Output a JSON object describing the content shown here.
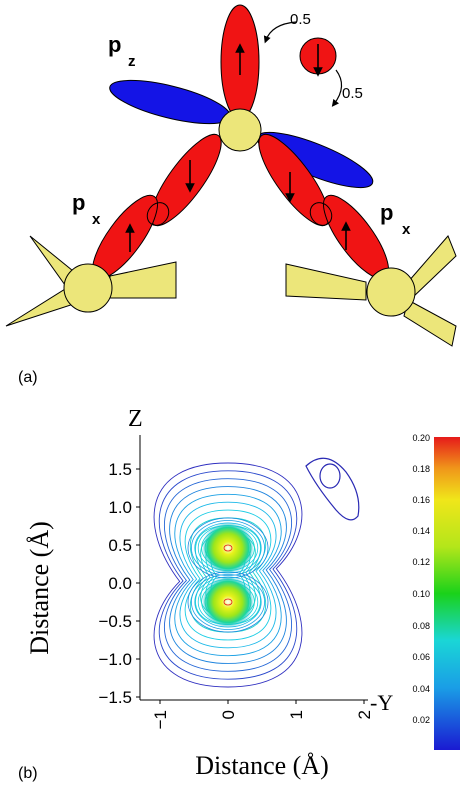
{
  "panel_a": {
    "label": "(a)",
    "orbital_pz": "p",
    "orbital_pz_sub": "z",
    "orbital_px_left": "p",
    "orbital_px_left_sub": "x",
    "orbital_px_right": "p",
    "orbital_px_right_sub": "x",
    "transfer_top": "0.5",
    "transfer_bottom": "0.5",
    "colors": {
      "red_lobe": "#f01414",
      "blue_lobe": "#1414e6",
      "atom": "#ece67a",
      "dark": "#000000"
    }
  },
  "panel_b": {
    "label": "(b)",
    "z_axis_label": "Z",
    "y_axis_label": "-Y",
    "ylabel": "Distance (Å)",
    "xlabel": "Distance (Å)",
    "y_ticks": [
      "1.5",
      "1.0",
      "0.5",
      "0.0",
      "−0.5",
      "−1.0",
      "−1.5"
    ],
    "x_ticks": [
      "−1",
      "0",
      "1",
      "2"
    ],
    "colorbar_ticks": [
      "0.20",
      "0.18",
      "0.16",
      "0.14",
      "0.12",
      "0.10",
      "0.08",
      "0.06",
      "0.04",
      "0.02"
    ]
  }
}
